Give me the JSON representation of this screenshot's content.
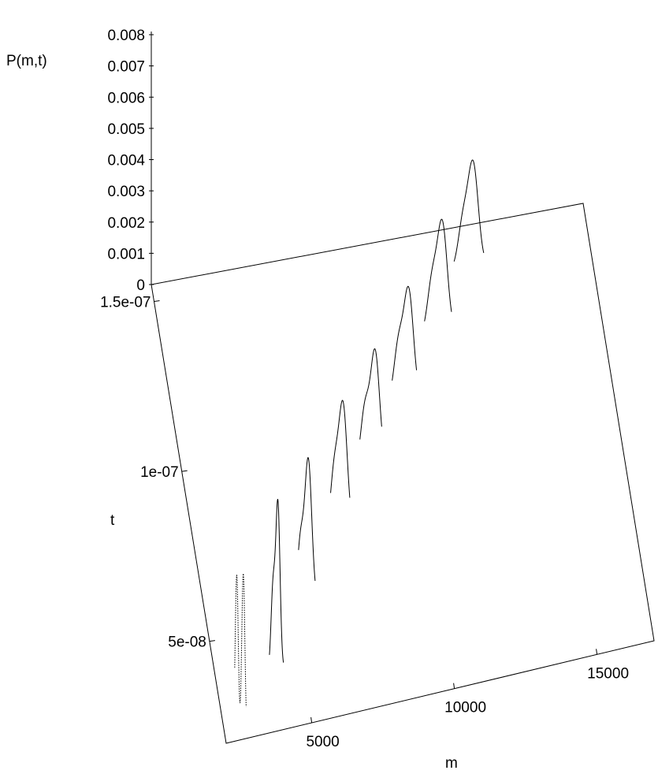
{
  "chart_data": {
    "type": "line",
    "projection": "3d-waterfall",
    "title": "",
    "xlabel": "m",
    "ylabel": "t",
    "zlabel": "P(m,t)",
    "x_ticks": [
      "5000",
      "10000",
      "15000"
    ],
    "y_ticks": [
      "5e-08",
      "1e-07",
      "1.5e-07"
    ],
    "z_ticks": [
      "0",
      "0.001",
      "0.002",
      "0.003",
      "0.004",
      "0.005",
      "0.006",
      "0.007",
      "0.008"
    ],
    "xlim": [
      2000,
      17000
    ],
    "ylim": [
      2e-08,
      1.55e-07
    ],
    "zlim": [
      0,
      0.008
    ],
    "grid": false,
    "series": [
      {
        "t": 2e-08,
        "m_center": 2500,
        "peaks": [
          {
            "m": 2370,
            "p": 0.0053,
            "w": 55
          },
          {
            "m": 2600,
            "p": 0.0053,
            "w": 55
          }
        ]
      },
      {
        "t": 3.75e-08,
        "m_center": 4100,
        "peaks": [
          {
            "m": 3980,
            "p": 0.0026,
            "w": 70
          },
          {
            "m": 4150,
            "p": 0.0053,
            "w": 75
          }
        ]
      },
      {
        "t": 5.5e-08,
        "m_center": 5500,
        "peaks": [
          {
            "m": 5280,
            "p": 0.002,
            "w": 110
          },
          {
            "m": 5550,
            "p": 0.0045,
            "w": 120
          }
        ]
      },
      {
        "t": 7.25e-08,
        "m_center": 7000,
        "peaks": [
          {
            "m": 6800,
            "p": 0.0021,
            "w": 140
          },
          {
            "m": 7100,
            "p": 0.004,
            "w": 145
          }
        ]
      },
      {
        "t": 9e-08,
        "m_center": 8400,
        "peaks": [
          {
            "m": 8200,
            "p": 0.0019,
            "w": 150
          },
          {
            "m": 8550,
            "p": 0.0036,
            "w": 155
          }
        ]
      },
      {
        "t": 1.075e-07,
        "m_center": 9900,
        "peaks": [
          {
            "m": 9700,
            "p": 0.0018,
            "w": 160
          },
          {
            "m": 10050,
            "p": 0.0034,
            "w": 165
          }
        ]
      },
      {
        "t": 1.25e-07,
        "m_center": 11400,
        "peaks": [
          {
            "m": 11200,
            "p": 0.0017,
            "w": 165
          },
          {
            "m": 11550,
            "p": 0.0034,
            "w": 170
          }
        ]
      },
      {
        "t": 1.425e-07,
        "m_center": 12800,
        "peaks": [
          {
            "m": 12600,
            "p": 0.0015,
            "w": 170
          },
          {
            "m": 12950,
            "p": 0.0032,
            "w": 175
          }
        ]
      }
    ]
  }
}
